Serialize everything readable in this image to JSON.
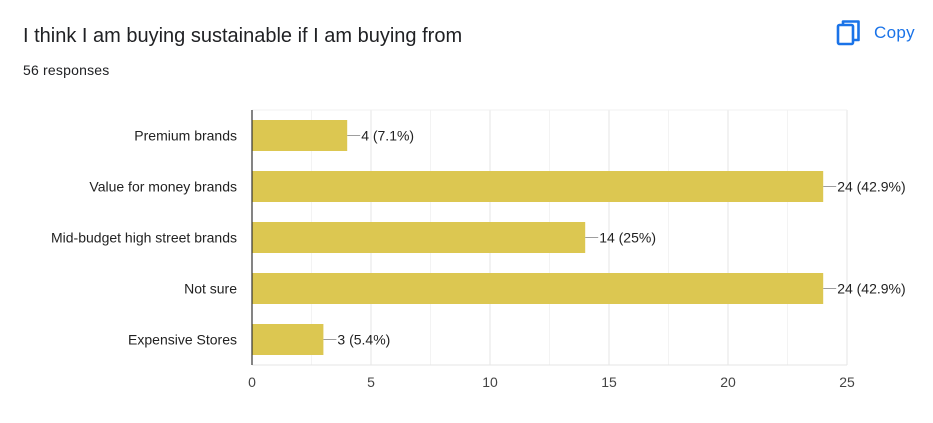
{
  "header": {
    "title": "I think I am buying sustainable if I am buying from",
    "responses": "56 responses",
    "copy_label": "Copy",
    "copy_icon": "copy-icon"
  },
  "colors": {
    "bar": "#dcc751",
    "accent": "#1a73e8",
    "grid": "#ebebeb",
    "axis": "#333333"
  },
  "chart_data": {
    "type": "bar",
    "orientation": "horizontal",
    "title": "I think I am buying sustainable if I am buying from",
    "xlabel": "",
    "ylabel": "",
    "categories": [
      "Premium brands",
      "Value for money brands",
      "Mid-budget high street brands",
      "Not sure",
      "Expensive Stores"
    ],
    "values": [
      4,
      24,
      14,
      24,
      3
    ],
    "data_labels": [
      "4 (7.1%)",
      "24 (42.9%)",
      "14 (25%)",
      "24 (42.9%)",
      "3 (5.4%)"
    ],
    "xlim": [
      0,
      25
    ],
    "xticks": [
      0,
      5,
      10,
      15,
      20,
      25
    ],
    "grid": true,
    "legend": "none"
  }
}
